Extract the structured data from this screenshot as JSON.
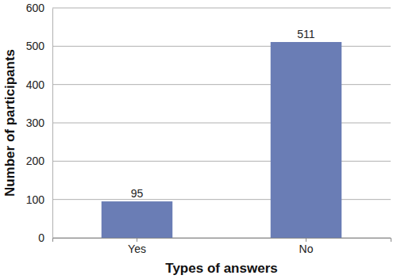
{
  "chart_data": {
    "type": "bar",
    "x_label": "Types of answers",
    "y_label": "Number of participants",
    "categories": [
      "Yes",
      "No"
    ],
    "values": [
      95,
      511
    ],
    "color": "#6a7db5",
    "ylim": [
      0,
      600
    ],
    "yticks": [
      0,
      100,
      200,
      300,
      400,
      500,
      600
    ],
    "grid": true,
    "data_labels": true
  }
}
